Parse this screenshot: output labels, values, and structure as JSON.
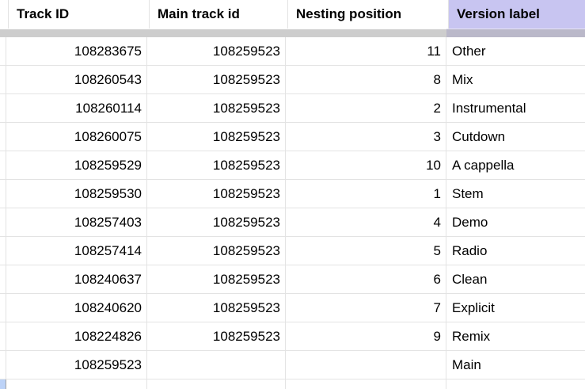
{
  "sheet": {
    "columns": [
      {
        "label": "Track ID"
      },
      {
        "label": "Main track id"
      },
      {
        "label": "Nesting position"
      },
      {
        "label": "Version label",
        "selected": true
      }
    ],
    "rows": [
      {
        "track_id": "108283675",
        "main_track_id": "108259523",
        "nesting_position": "11",
        "version_label": "Other"
      },
      {
        "track_id": "108260543",
        "main_track_id": "108259523",
        "nesting_position": "8",
        "version_label": "Mix"
      },
      {
        "track_id": "108260114",
        "main_track_id": "108259523",
        "nesting_position": "2",
        "version_label": "Instrumental"
      },
      {
        "track_id": "108260075",
        "main_track_id": "108259523",
        "nesting_position": "3",
        "version_label": "Cutdown"
      },
      {
        "track_id": "108259529",
        "main_track_id": "108259523",
        "nesting_position": "10",
        "version_label": "A cappella"
      },
      {
        "track_id": "108259530",
        "main_track_id": "108259523",
        "nesting_position": "1",
        "version_label": "Stem"
      },
      {
        "track_id": "108257403",
        "main_track_id": "108259523",
        "nesting_position": "4",
        "version_label": "Demo"
      },
      {
        "track_id": "108257414",
        "main_track_id": "108259523",
        "nesting_position": "5",
        "version_label": "Radio"
      },
      {
        "track_id": "108240637",
        "main_track_id": "108259523",
        "nesting_position": "6",
        "version_label": "Clean"
      },
      {
        "track_id": "108240620",
        "main_track_id": "108259523",
        "nesting_position": "7",
        "version_label": "Explicit"
      },
      {
        "track_id": "108224826",
        "main_track_id": "108259523",
        "nesting_position": "9",
        "version_label": "Remix"
      },
      {
        "track_id": "108259523",
        "main_track_id": "",
        "nesting_position": "",
        "version_label": "Main"
      }
    ]
  },
  "colors": {
    "selected_column_header_bg": "#c8c5f1",
    "freeze_bar": "#cdcdcd",
    "freeze_bar_under_selected_column": "#bab8c9",
    "gridline": "#e3e3e3",
    "row_header_border": "#a3a3a3",
    "active_row_marker": "#bcd2f7",
    "cell_text": "#000000"
  }
}
